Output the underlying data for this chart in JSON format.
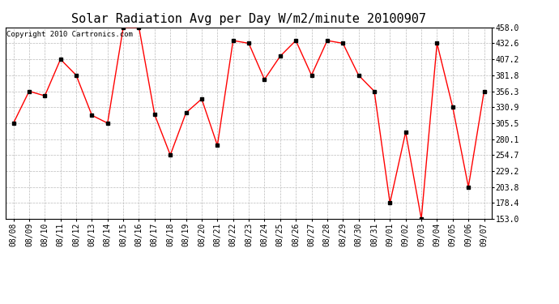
{
  "title": "Solar Radiation Avg per Day W/m2/minute 20100907",
  "copyright": "Copyright 2010 Cartronics.com",
  "dates": [
    "08/08",
    "08/09",
    "08/10",
    "08/11",
    "08/12",
    "08/13",
    "08/14",
    "08/15",
    "08/16",
    "08/17",
    "08/18",
    "08/19",
    "08/20",
    "08/21",
    "08/22",
    "08/23",
    "08/24",
    "08/25",
    "08/26",
    "08/27",
    "08/28",
    "08/29",
    "08/30",
    "08/31",
    "09/01",
    "09/02",
    "09/03",
    "09/04",
    "09/05",
    "09/06",
    "09/07"
  ],
  "values": [
    305.5,
    356.3,
    349.0,
    407.2,
    381.8,
    318.0,
    305.5,
    458.0,
    458.0,
    319.0,
    254.7,
    322.0,
    344.0,
    270.0,
    437.0,
    432.6,
    375.0,
    412.0,
    437.0,
    381.8,
    437.0,
    432.6,
    381.8,
    356.3,
    178.4,
    291.0,
    153.0,
    432.6,
    330.9,
    203.8,
    356.3
  ],
  "ymin": 153.0,
  "ymax": 458.0,
  "ytick_values": [
    153.0,
    178.4,
    203.8,
    229.2,
    254.7,
    280.1,
    305.5,
    330.9,
    356.3,
    381.8,
    407.2,
    432.6,
    458.0
  ],
  "line_color": "#ff0000",
  "marker_color": "#000000",
  "bg_color": "#ffffff",
  "grid_color": "#bbbbbb",
  "title_fontsize": 11,
  "copyright_fontsize": 6.5,
  "tick_fontsize": 7
}
